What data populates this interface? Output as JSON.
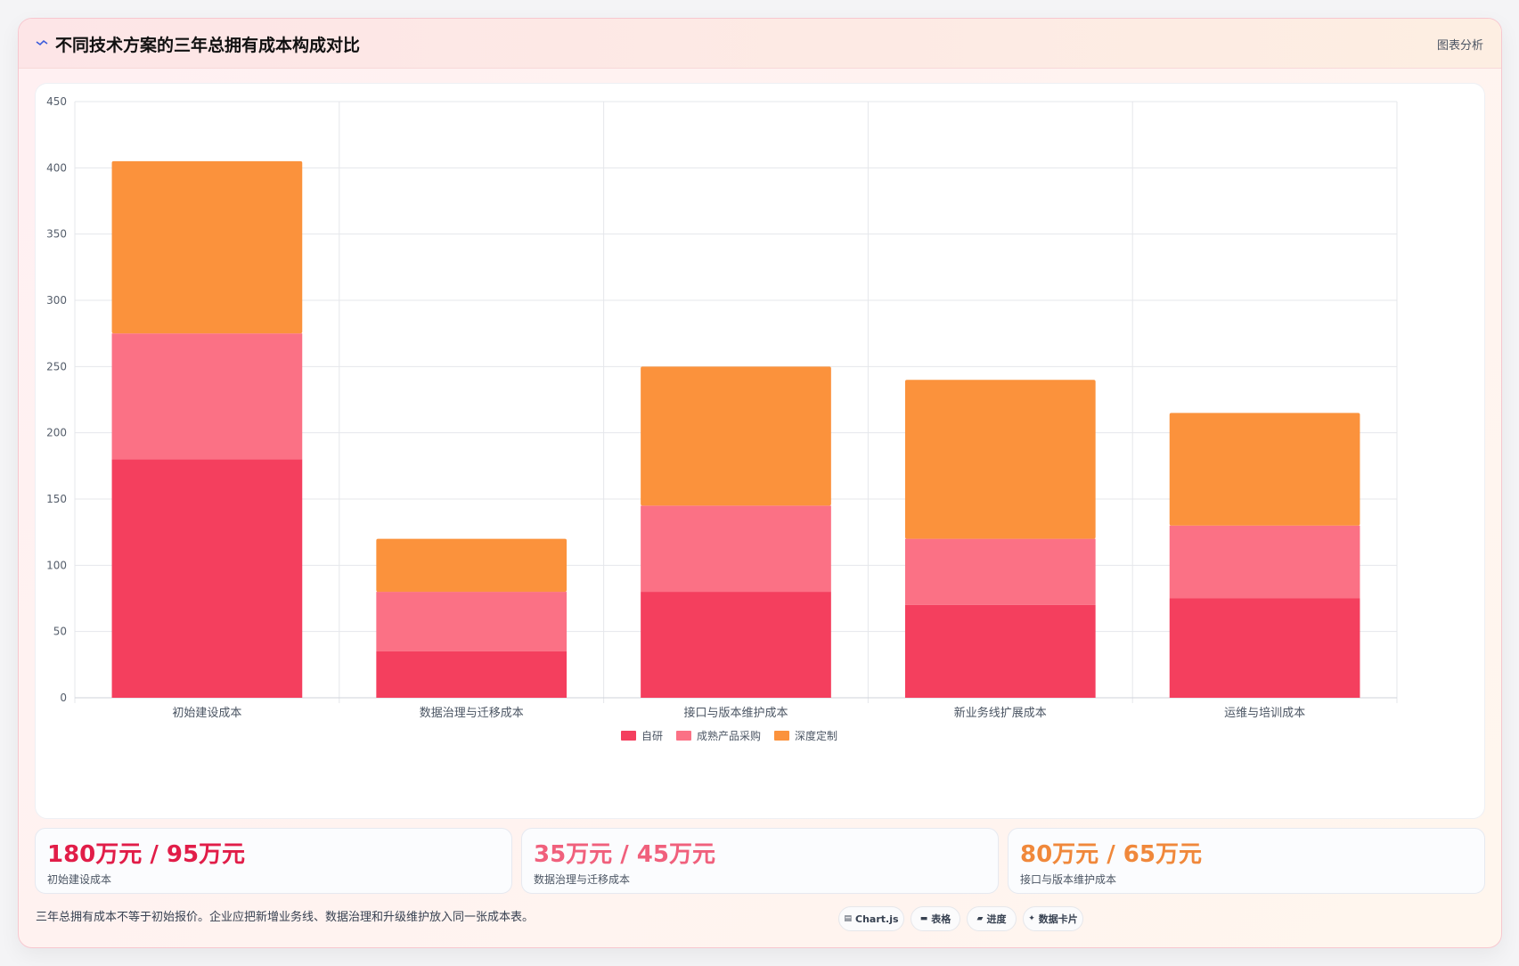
{
  "header": {
    "title": "不同技术方案的三年总拥有成本构成对比",
    "action_label": "图表分析",
    "logo_icon": "trend-line-icon"
  },
  "chart_data": {
    "type": "bar",
    "stacked": true,
    "categories": [
      "初始建设成本",
      "数据治理与迁移成本",
      "接口与版本维护成本",
      "新业务线扩展成本",
      "运维与培训成本"
    ],
    "series": [
      {
        "name": "自研",
        "color": "#f43f5e",
        "values": [
          180,
          35,
          80,
          70,
          75
        ]
      },
      {
        "name": "成熟产品采购",
        "color": "#fb7185",
        "values": [
          95,
          45,
          65,
          50,
          55
        ]
      },
      {
        "name": "深度定制",
        "color": "#fb923c",
        "values": [
          130,
          40,
          105,
          120,
          85
        ]
      }
    ],
    "ylim": [
      0,
      450
    ],
    "yticks": [
      0,
      50,
      100,
      150,
      200,
      250,
      300,
      350,
      400,
      450
    ],
    "grid": true,
    "legend": "bottom-center"
  },
  "stats": [
    {
      "value": "180万元 / 95万元",
      "label": "初始建设成本",
      "color": "#e11d48"
    },
    {
      "value": "35万元 / 45万元",
      "label": "数据治理与迁移成本",
      "color": "#f0607c"
    },
    {
      "value": "80万元 / 65万元",
      "label": "接口与版本维护成本",
      "color": "#f0883b"
    }
  ],
  "footer": {
    "note": "三年总拥有成本不等于初始报价。企业应把新增业务线、数据治理和升级维护放入同一张成本表。"
  },
  "pills": [
    {
      "label": "Chart.js",
      "icon": "chart-icon"
    },
    {
      "label": "表格",
      "icon": "table-icon"
    },
    {
      "label": "进度",
      "icon": "progress-icon"
    },
    {
      "label": "数据卡片",
      "icon": "sparkle-icon"
    }
  ]
}
